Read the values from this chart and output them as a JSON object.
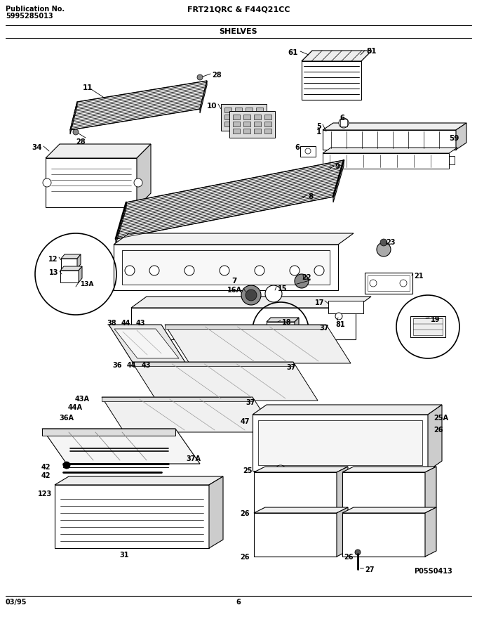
{
  "pub_label": "Publication No.",
  "pub_number": "5995285013",
  "model": "FRT21QRC & F44Q21CC",
  "section": "SHELVES",
  "date": "03/95",
  "page": "6",
  "part_code": "P05S0413",
  "bg_color": "#ffffff",
  "fig_width": 6.8,
  "fig_height": 8.88,
  "dpi": 100
}
